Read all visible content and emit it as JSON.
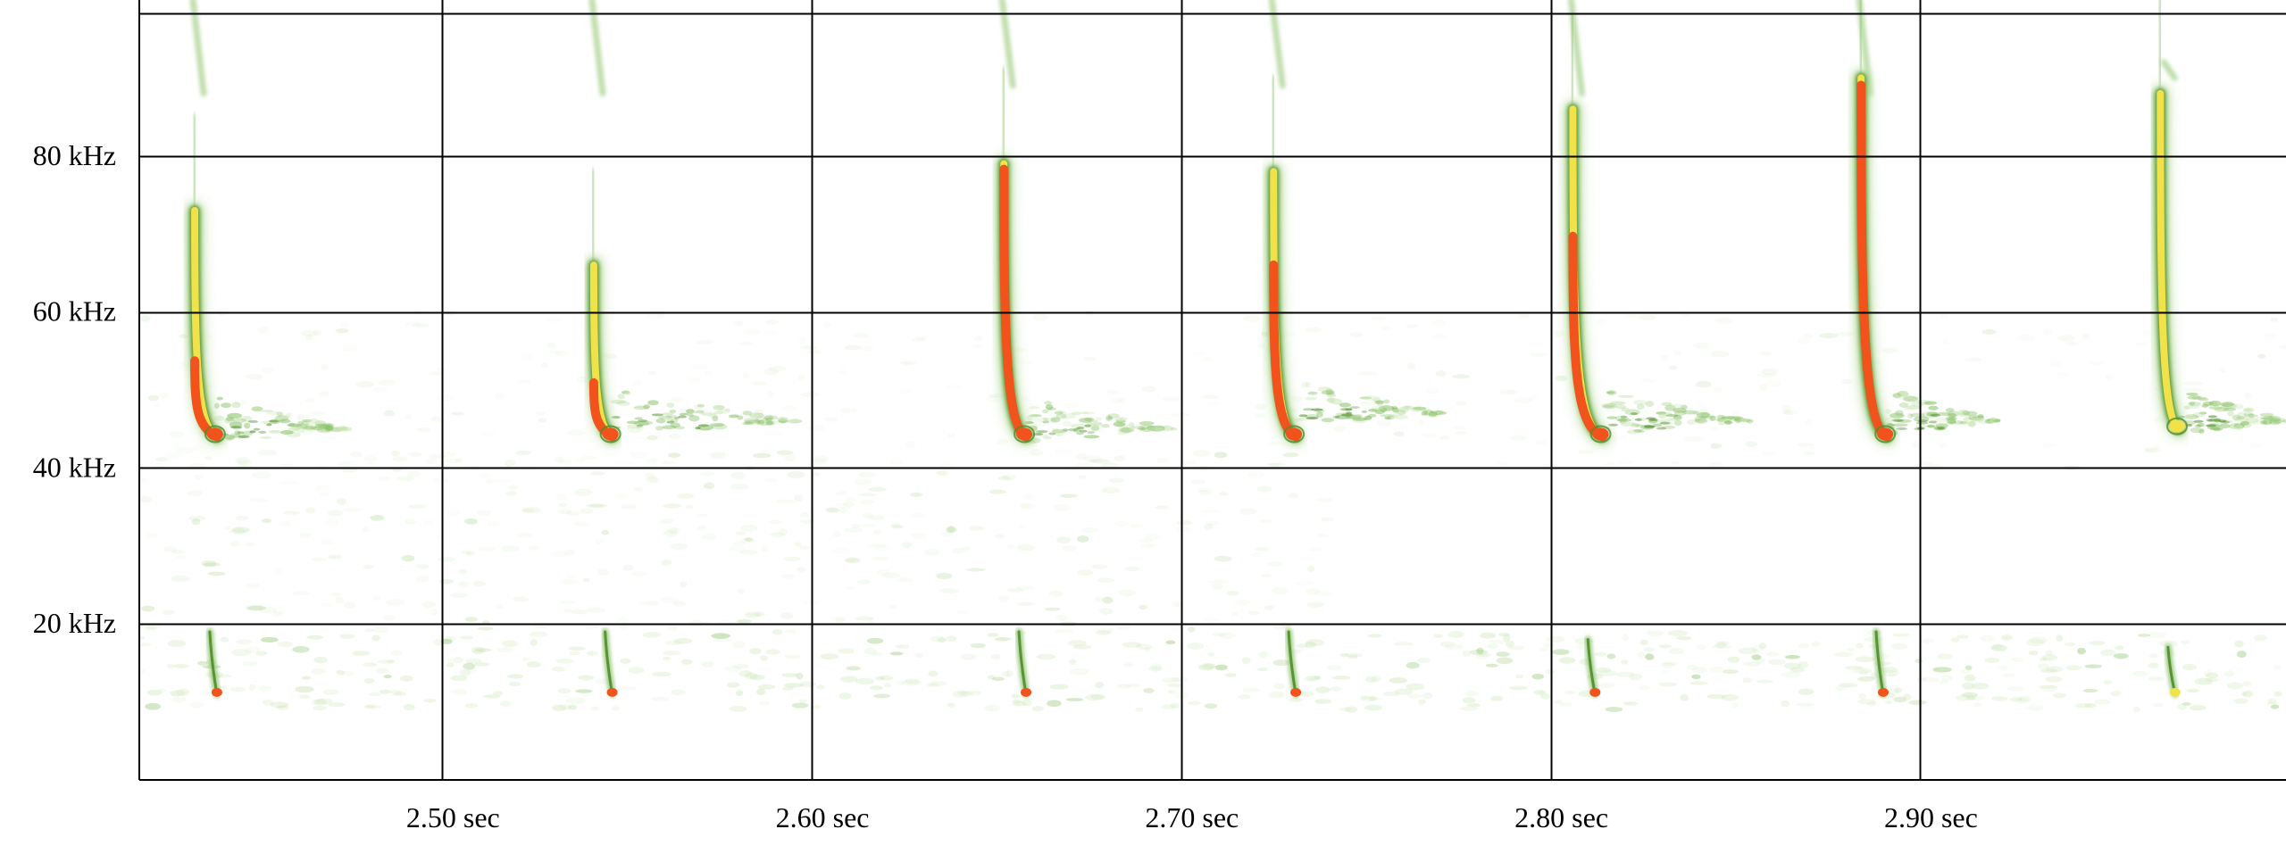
{
  "chart_data": {
    "type": "heatmap",
    "title": "",
    "xlabel": "",
    "ylabel": "",
    "xlim": [
      2.418,
      2.999
    ],
    "ylim": [
      0,
      100
    ],
    "grid": true,
    "x_ticks": [
      {
        "value": 2.5,
        "label": "2.50 sec"
      },
      {
        "value": 2.6,
        "label": "2.60 sec"
      },
      {
        "value": 2.7,
        "label": "2.70 sec"
      },
      {
        "value": 2.8,
        "label": "2.80 sec"
      },
      {
        "value": 2.9,
        "label": "2.90 sec"
      }
    ],
    "y_ticks": [
      {
        "value": 20,
        "label": "20 kHz"
      },
      {
        "value": 40,
        "label": "40 kHz"
      },
      {
        "value": 60,
        "label": "60 kHz"
      },
      {
        "value": 80,
        "label": "80 kHz"
      }
    ],
    "colors": {
      "faint": "#cfe8bd",
      "low": "#8cc26a",
      "mid": "#4f8d2c",
      "high": "#f2e24a",
      "peak": "#f2521c"
    },
    "calls": [
      {
        "time": 2.433,
        "end_time": 2.439,
        "start_khz": 73,
        "end_khz": 44,
        "intensity": 0.8,
        "harmonic_start_khz": 100,
        "harmonic_end_khz": 88,
        "echo_extent": 0.035,
        "echo_khz": 45,
        "sub_time": 2.439,
        "sub_khz": 11,
        "sub_top_khz": 19
      },
      {
        "time": 2.541,
        "end_time": 2.546,
        "start_khz": 66,
        "end_khz": 44,
        "intensity": 0.75,
        "harmonic_start_khz": 100,
        "harmonic_end_khz": 88,
        "echo_extent": 0.05,
        "echo_khz": 46,
        "sub_time": 2.546,
        "sub_khz": 11,
        "sub_top_khz": 19
      },
      {
        "time": 2.652,
        "end_time": 2.658,
        "start_khz": 79,
        "end_khz": 44,
        "intensity": 1.0,
        "harmonic_start_khz": 100,
        "harmonic_end_khz": 89,
        "echo_extent": 0.04,
        "echo_khz": 45,
        "sub_time": 2.658,
        "sub_khz": 11,
        "sub_top_khz": 19
      },
      {
        "time": 2.725,
        "end_time": 2.731,
        "start_khz": 78,
        "end_khz": 44,
        "intensity": 0.9,
        "harmonic_start_khz": 100,
        "harmonic_end_khz": 89,
        "echo_extent": 0.04,
        "echo_khz": 47,
        "sub_time": 2.731,
        "sub_khz": 11,
        "sub_top_khz": 19
      },
      {
        "time": 2.806,
        "end_time": 2.814,
        "start_khz": 86,
        "end_khz": 44,
        "intensity": 0.85,
        "harmonic_start_khz": 100,
        "harmonic_end_khz": 88,
        "echo_extent": 0.04,
        "echo_khz": 46,
        "sub_time": 2.812,
        "sub_khz": 11,
        "sub_top_khz": 18
      },
      {
        "time": 2.884,
        "end_time": 2.891,
        "start_khz": 90,
        "end_khz": 44,
        "intensity": 1.0,
        "harmonic_start_khz": 100,
        "harmonic_end_khz": 88,
        "echo_extent": 0.03,
        "echo_khz": 46,
        "sub_time": 2.89,
        "sub_khz": 11,
        "sub_top_khz": 19
      },
      {
        "time": 2.965,
        "end_time": 2.97,
        "start_khz": 88,
        "end_khz": 45,
        "intensity": 0.5,
        "harmonic_start_khz": 92,
        "harmonic_end_khz": 90,
        "echo_extent": 0.03,
        "echo_khz": 46,
        "sub_time": 2.969,
        "sub_khz": 11,
        "sub_top_khz": 17
      }
    ]
  }
}
